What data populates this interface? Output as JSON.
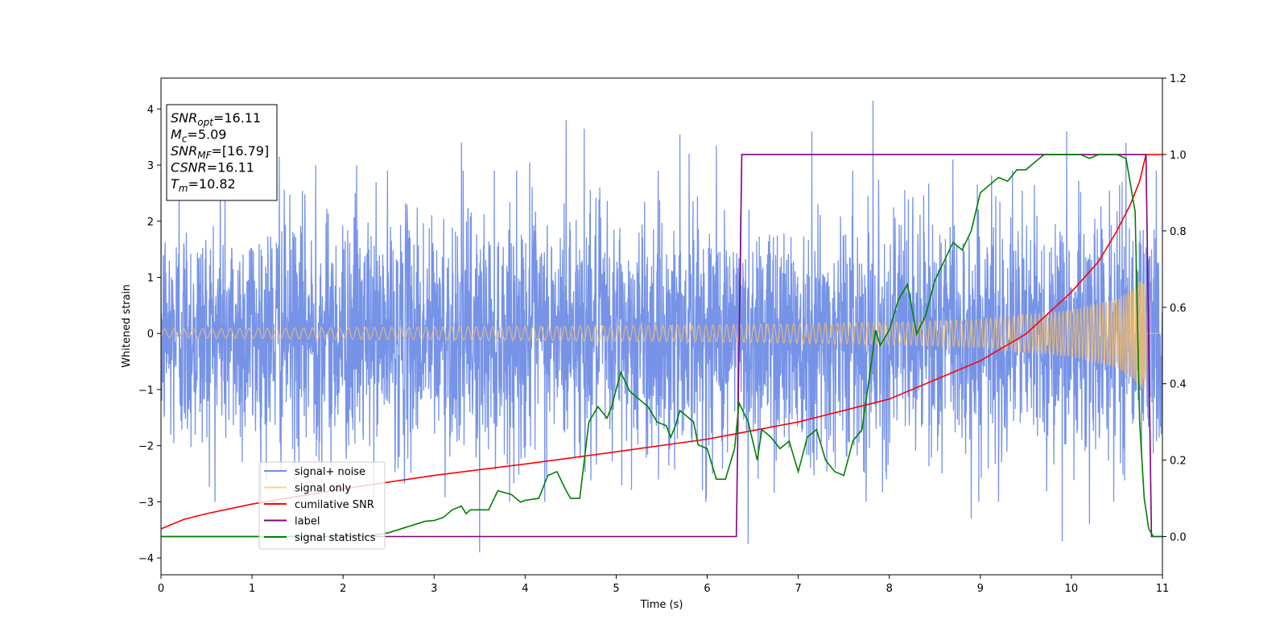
{
  "chart_data": {
    "type": "line",
    "title": "",
    "xlabel": "Time (s)",
    "ylabel": "Whitened strain",
    "xlim": [
      0,
      11
    ],
    "ylim": [
      -4.3,
      4.55
    ],
    "y2lim": [
      -0.1,
      1.2
    ],
    "x_ticks": [
      "0",
      "1",
      "2",
      "3",
      "4",
      "5",
      "6",
      "7",
      "8",
      "9",
      "10",
      "11"
    ],
    "y_ticks": [
      "−4",
      "−3",
      "−2",
      "−1",
      "0",
      "1",
      "2",
      "3",
      "4"
    ],
    "y2_ticks": [
      "0.0",
      "0.2",
      "0.4",
      "0.6",
      "0.8",
      "1.0",
      "1.2"
    ],
    "grid": false,
    "legend_position": "lower-left",
    "info_box": [
      {
        "main": "SNR",
        "sub": "opt",
        "value": "=16.11"
      },
      {
        "main": "M",
        "sub": "c",
        "value": "=5.09"
      },
      {
        "main": "SNR",
        "sub": "MF",
        "value": "=[16.79]"
      },
      {
        "main": "CSNR",
        "sub": "",
        "value": "=16.11"
      },
      {
        "main": "T",
        "sub": "m",
        "value": "=10.82"
      }
    ],
    "series": [
      {
        "name": "signal+ noise",
        "color": "#6f8de6",
        "axis": "left",
        "kind": "noise",
        "noise_std": 1.25,
        "x_range": [
          0,
          11
        ],
        "peaks": [
          [
            0.2,
            2.7
          ],
          [
            0.65,
            2.95
          ],
          [
            1.3,
            3.15
          ],
          [
            1.7,
            3.0
          ],
          [
            2.15,
            3.0
          ],
          [
            3.3,
            3.4
          ],
          [
            4.05,
            3.05
          ],
          [
            4.45,
            3.8
          ],
          [
            4.65,
            3.65
          ],
          [
            5.7,
            3.55
          ],
          [
            5.8,
            3.2
          ],
          [
            6.1,
            3.35
          ],
          [
            7.15,
            3.6
          ],
          [
            7.82,
            4.15
          ],
          [
            8.7,
            3.1
          ],
          [
            9.95,
            3.6
          ],
          [
            10.6,
            3.4
          ],
          [
            3.5,
            -3.9
          ],
          [
            6.45,
            -3.75
          ],
          [
            7.15,
            -3.3
          ],
          [
            8.9,
            -3.3
          ],
          [
            9.9,
            -3.7
          ],
          [
            10.2,
            -3.4
          ]
        ]
      },
      {
        "name": "signal only",
        "color": "#ffc266",
        "axis": "left",
        "kind": "chirp",
        "merge_time": 10.82,
        "amplitude": [
          [
            0,
            0.08
          ],
          [
            6,
            0.15
          ],
          [
            8,
            0.2
          ],
          [
            9,
            0.25
          ],
          [
            10,
            0.42
          ],
          [
            10.5,
            0.62
          ],
          [
            10.7,
            0.85
          ],
          [
            10.8,
            1.0
          ]
        ]
      },
      {
        "name": "cumilative SNR",
        "color": "#ff0000",
        "axis": "right",
        "x": [
          0,
          0.25,
          0.5,
          1,
          1.5,
          2,
          3,
          4,
          5,
          6,
          7,
          8,
          9,
          9.5,
          10,
          10.3,
          10.5,
          10.65,
          10.75,
          10.82,
          11
        ],
        "y": [
          0.02,
          0.045,
          0.06,
          0.085,
          0.105,
          0.125,
          0.16,
          0.19,
          0.222,
          0.255,
          0.3,
          0.36,
          0.46,
          0.53,
          0.64,
          0.72,
          0.8,
          0.87,
          0.93,
          1.0,
          1.0
        ]
      },
      {
        "name": "label",
        "color": "#800080",
        "axis": "right",
        "x": [
          0,
          6.32,
          6.38,
          10.82,
          10.88,
          11
        ],
        "y": [
          0,
          0,
          1,
          1,
          0,
          0
        ]
      },
      {
        "name": "signal statistics",
        "color": "#008000",
        "axis": "right",
        "x": [
          0,
          1.5,
          2.0,
          2.3,
          2.5,
          2.7,
          2.9,
          3.0,
          3.1,
          3.2,
          3.3,
          3.35,
          3.4,
          3.6,
          3.7,
          3.85,
          3.95,
          4.0,
          4.15,
          4.25,
          4.35,
          4.45,
          4.5,
          4.6,
          4.7,
          4.8,
          4.9,
          4.95,
          5.05,
          5.15,
          5.25,
          5.35,
          5.45,
          5.55,
          5.6,
          5.65,
          5.7,
          5.8,
          5.85,
          5.9,
          6.0,
          6.1,
          6.2,
          6.3,
          6.35,
          6.45,
          6.55,
          6.6,
          6.7,
          6.8,
          6.9,
          7.0,
          7.1,
          7.2,
          7.3,
          7.4,
          7.5,
          7.6,
          7.7,
          7.8,
          7.85,
          7.9,
          8.0,
          8.1,
          8.2,
          8.3,
          8.4,
          8.5,
          8.6,
          8.7,
          8.8,
          8.9,
          9.0,
          9.1,
          9.2,
          9.3,
          9.4,
          9.5,
          9.6,
          9.7,
          9.8,
          9.9,
          10.0,
          10.1,
          10.2,
          10.3,
          10.4,
          10.5,
          10.6,
          10.7,
          10.75,
          10.8,
          10.85,
          10.9,
          11.0
        ],
        "y": [
          0,
          0,
          0,
          0.002,
          0.01,
          0.025,
          0.04,
          0.042,
          0.05,
          0.07,
          0.08,
          0.06,
          0.07,
          0.07,
          0.12,
          0.11,
          0.09,
          0.095,
          0.1,
          0.16,
          0.17,
          0.12,
          0.1,
          0.1,
          0.3,
          0.34,
          0.31,
          0.34,
          0.43,
          0.38,
          0.36,
          0.34,
          0.3,
          0.29,
          0.26,
          0.29,
          0.33,
          0.31,
          0.3,
          0.24,
          0.23,
          0.15,
          0.15,
          0.23,
          0.35,
          0.3,
          0.2,
          0.28,
          0.26,
          0.23,
          0.25,
          0.17,
          0.26,
          0.28,
          0.2,
          0.17,
          0.16,
          0.25,
          0.28,
          0.45,
          0.54,
          0.5,
          0.54,
          0.62,
          0.66,
          0.53,
          0.58,
          0.67,
          0.72,
          0.77,
          0.75,
          0.8,
          0.9,
          0.92,
          0.94,
          0.93,
          0.96,
          0.96,
          0.98,
          1.0,
          1.0,
          1.0,
          1.0,
          1.0,
          0.99,
          1.0,
          1.0,
          1.0,
          0.99,
          0.85,
          0.3,
          0.1,
          0.02,
          0.0,
          0.0
        ]
      }
    ]
  }
}
